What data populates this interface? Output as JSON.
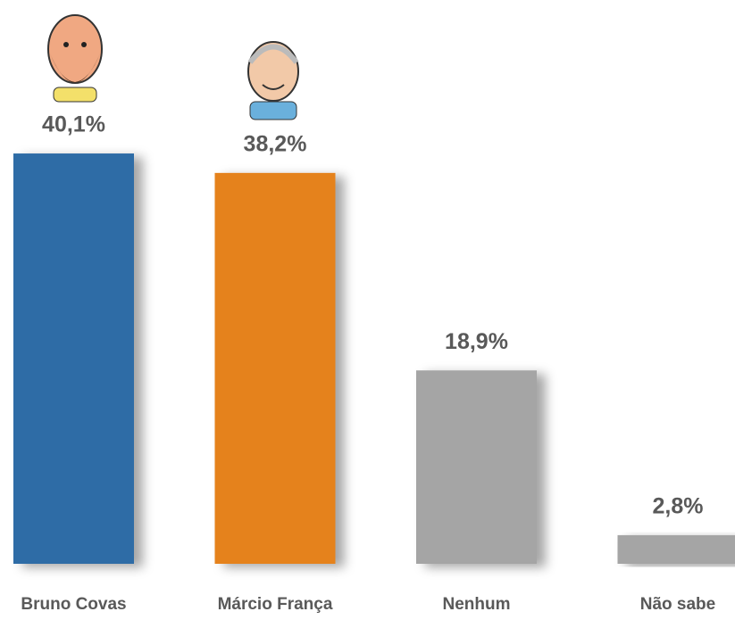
{
  "chart_data": {
    "type": "bar",
    "categories": [
      "Bruno Covas",
      "Márcio França",
      "Nenhum",
      "Não sabe"
    ],
    "values": [
      40.1,
      38.2,
      18.9,
      2.8
    ],
    "value_labels": [
      "40,1%",
      "38,2%",
      "18,9%",
      "2,8%"
    ],
    "colors": [
      "#2e6ca6",
      "#e5821e",
      "#a5a5a5",
      "#a5a5a5"
    ]
  }
}
